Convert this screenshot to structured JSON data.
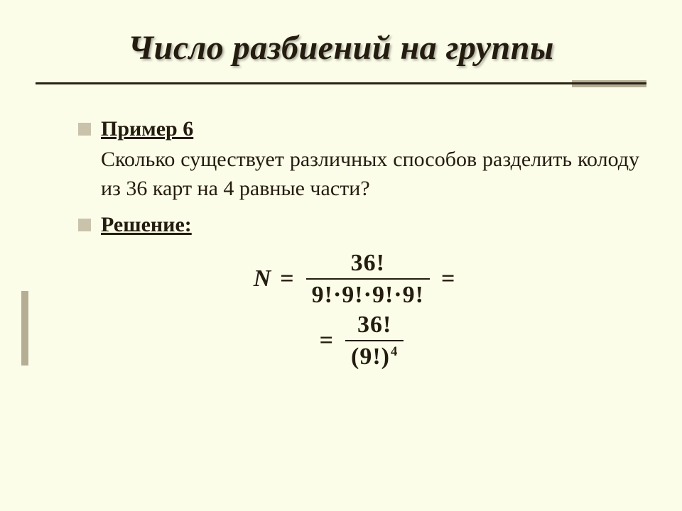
{
  "colors": {
    "background": "#fbfde8",
    "text": "#251c10",
    "accent": "#b5ae95",
    "rule": "#2a2114"
  },
  "title": "Число разбиений на группы",
  "example": {
    "label": "Пример 6",
    "text": "Сколько существует различных способов разделить колоду из 36 карт  на 4 равные части?"
  },
  "solution": {
    "label": "Решение:",
    "formula": {
      "variable": "N",
      "line1": {
        "numerator": "36!",
        "denominator": "9!·9!·9!·9!"
      },
      "line2": {
        "numerator": "36!",
        "den_base": "(9!)",
        "den_exp": "4"
      }
    }
  }
}
